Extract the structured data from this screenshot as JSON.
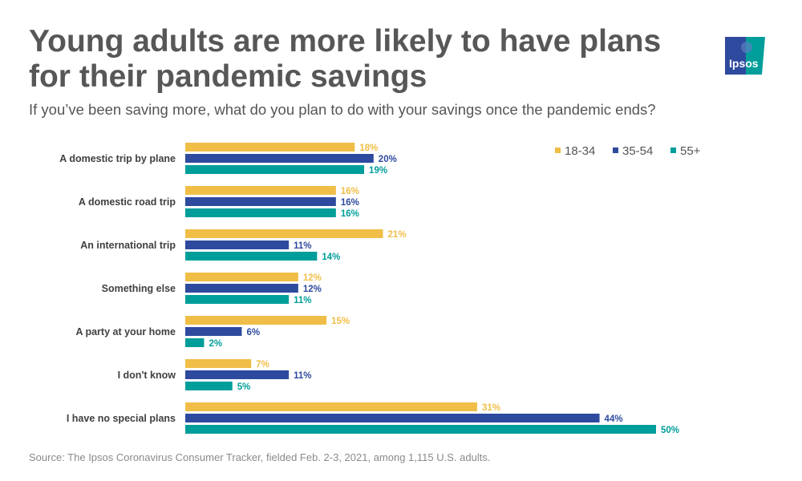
{
  "title": "Young adults are more likely to have plans for their pandemic savings",
  "subtitle": "If you’ve been saving more, what do you plan to do with your savings once the pandemic ends?",
  "source": "Source: The Ipsos Coronavirus Consumer Tracker, fielded Feb. 2-3, 2021, among 1,115 U.S. adults.",
  "logo": {
    "text": "Ipsos",
    "colors": [
      "#2E4A9E",
      "#009E9A"
    ]
  },
  "chart_data": {
    "type": "bar",
    "orientation": "horizontal",
    "categories": [
      "A domestic trip by plane",
      "A domestic road trip",
      "An international trip",
      "Something else",
      "A party at your home",
      "I don't know",
      "I have no special plans"
    ],
    "series": [
      {
        "name": "18-34",
        "color": "#F0BE47",
        "values": [
          18,
          16,
          21,
          12,
          15,
          7,
          31
        ]
      },
      {
        "name": "35-54",
        "color": "#2E4A9E",
        "values": [
          20,
          16,
          11,
          12,
          6,
          11,
          44
        ]
      },
      {
        "name": "55+",
        "color": "#009E9A",
        "values": [
          19,
          16,
          14,
          11,
          2,
          5,
          50
        ]
      }
    ],
    "value_format": "%",
    "xlim": [
      0,
      50
    ],
    "grid": false,
    "legend": "top-right"
  }
}
